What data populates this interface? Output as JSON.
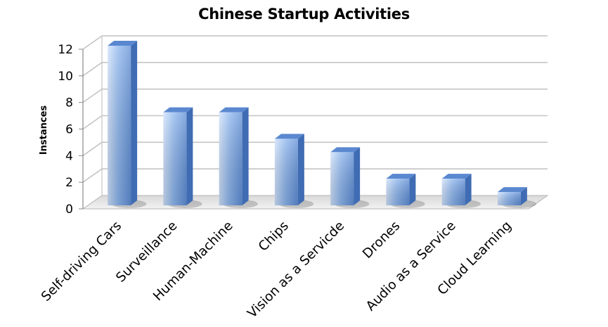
{
  "chart_data": {
    "type": "bar",
    "title": "Chinese Startup Activities",
    "xlabel": "",
    "ylabel": "Instances",
    "categories": [
      "Self-driving Cars",
      "Surveillance",
      "Human-Machine",
      "Chips",
      "Vision as a Servicde",
      "Drones",
      "Audio as a Service",
      "Cloud Learning"
    ],
    "values": [
      12,
      7,
      7,
      5,
      4,
      2,
      2,
      1
    ],
    "ylim": [
      0,
      12
    ],
    "yticks": [
      0,
      2,
      4,
      6,
      8,
      10,
      12
    ],
    "grid": true,
    "legend": "none",
    "style": "3d-column",
    "colors": {
      "bar_light": "#b9d3f7",
      "bar_mid": "#7eaaea",
      "bar_dark": "#4f7fc9",
      "bar_top": "#5d8ad2",
      "bar_side": "#3f6bb4",
      "gridline": "#c8c8c8",
      "floor": "#e6e6e6"
    }
  }
}
